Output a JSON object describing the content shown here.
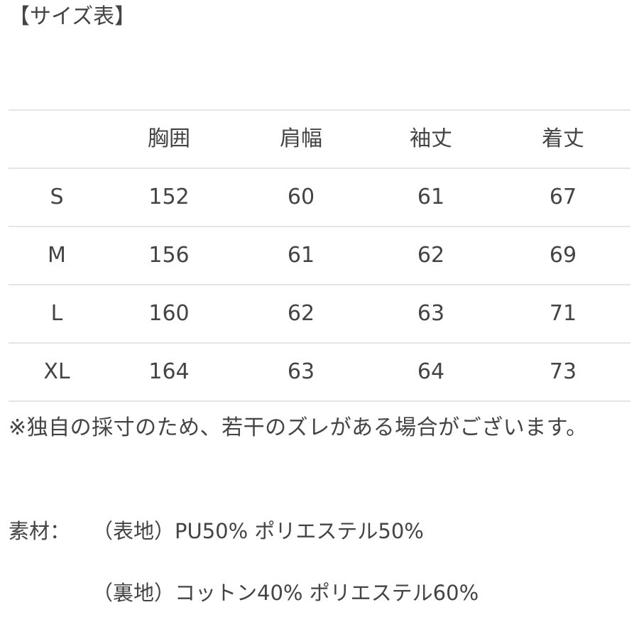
{
  "title": "【サイズ表】",
  "table": {
    "headers": [
      "",
      "胸囲",
      "肩幅",
      "袖丈",
      "着丈"
    ],
    "rows": [
      [
        "S",
        "152",
        "60",
        "61",
        "67"
      ],
      [
        "M",
        "156",
        "61",
        "62",
        "69"
      ],
      [
        "L",
        "160",
        "62",
        "63",
        "71"
      ],
      [
        "XL",
        "164",
        "63",
        "64",
        "73"
      ]
    ]
  },
  "note": "※独自の採寸のため、若干のズレがある場合がございます。",
  "material": {
    "label": "素材：",
    "outer": "（表地）PU50% ポリエステル50%",
    "lining": "（裏地）コットン40% ポリエステル60%"
  }
}
